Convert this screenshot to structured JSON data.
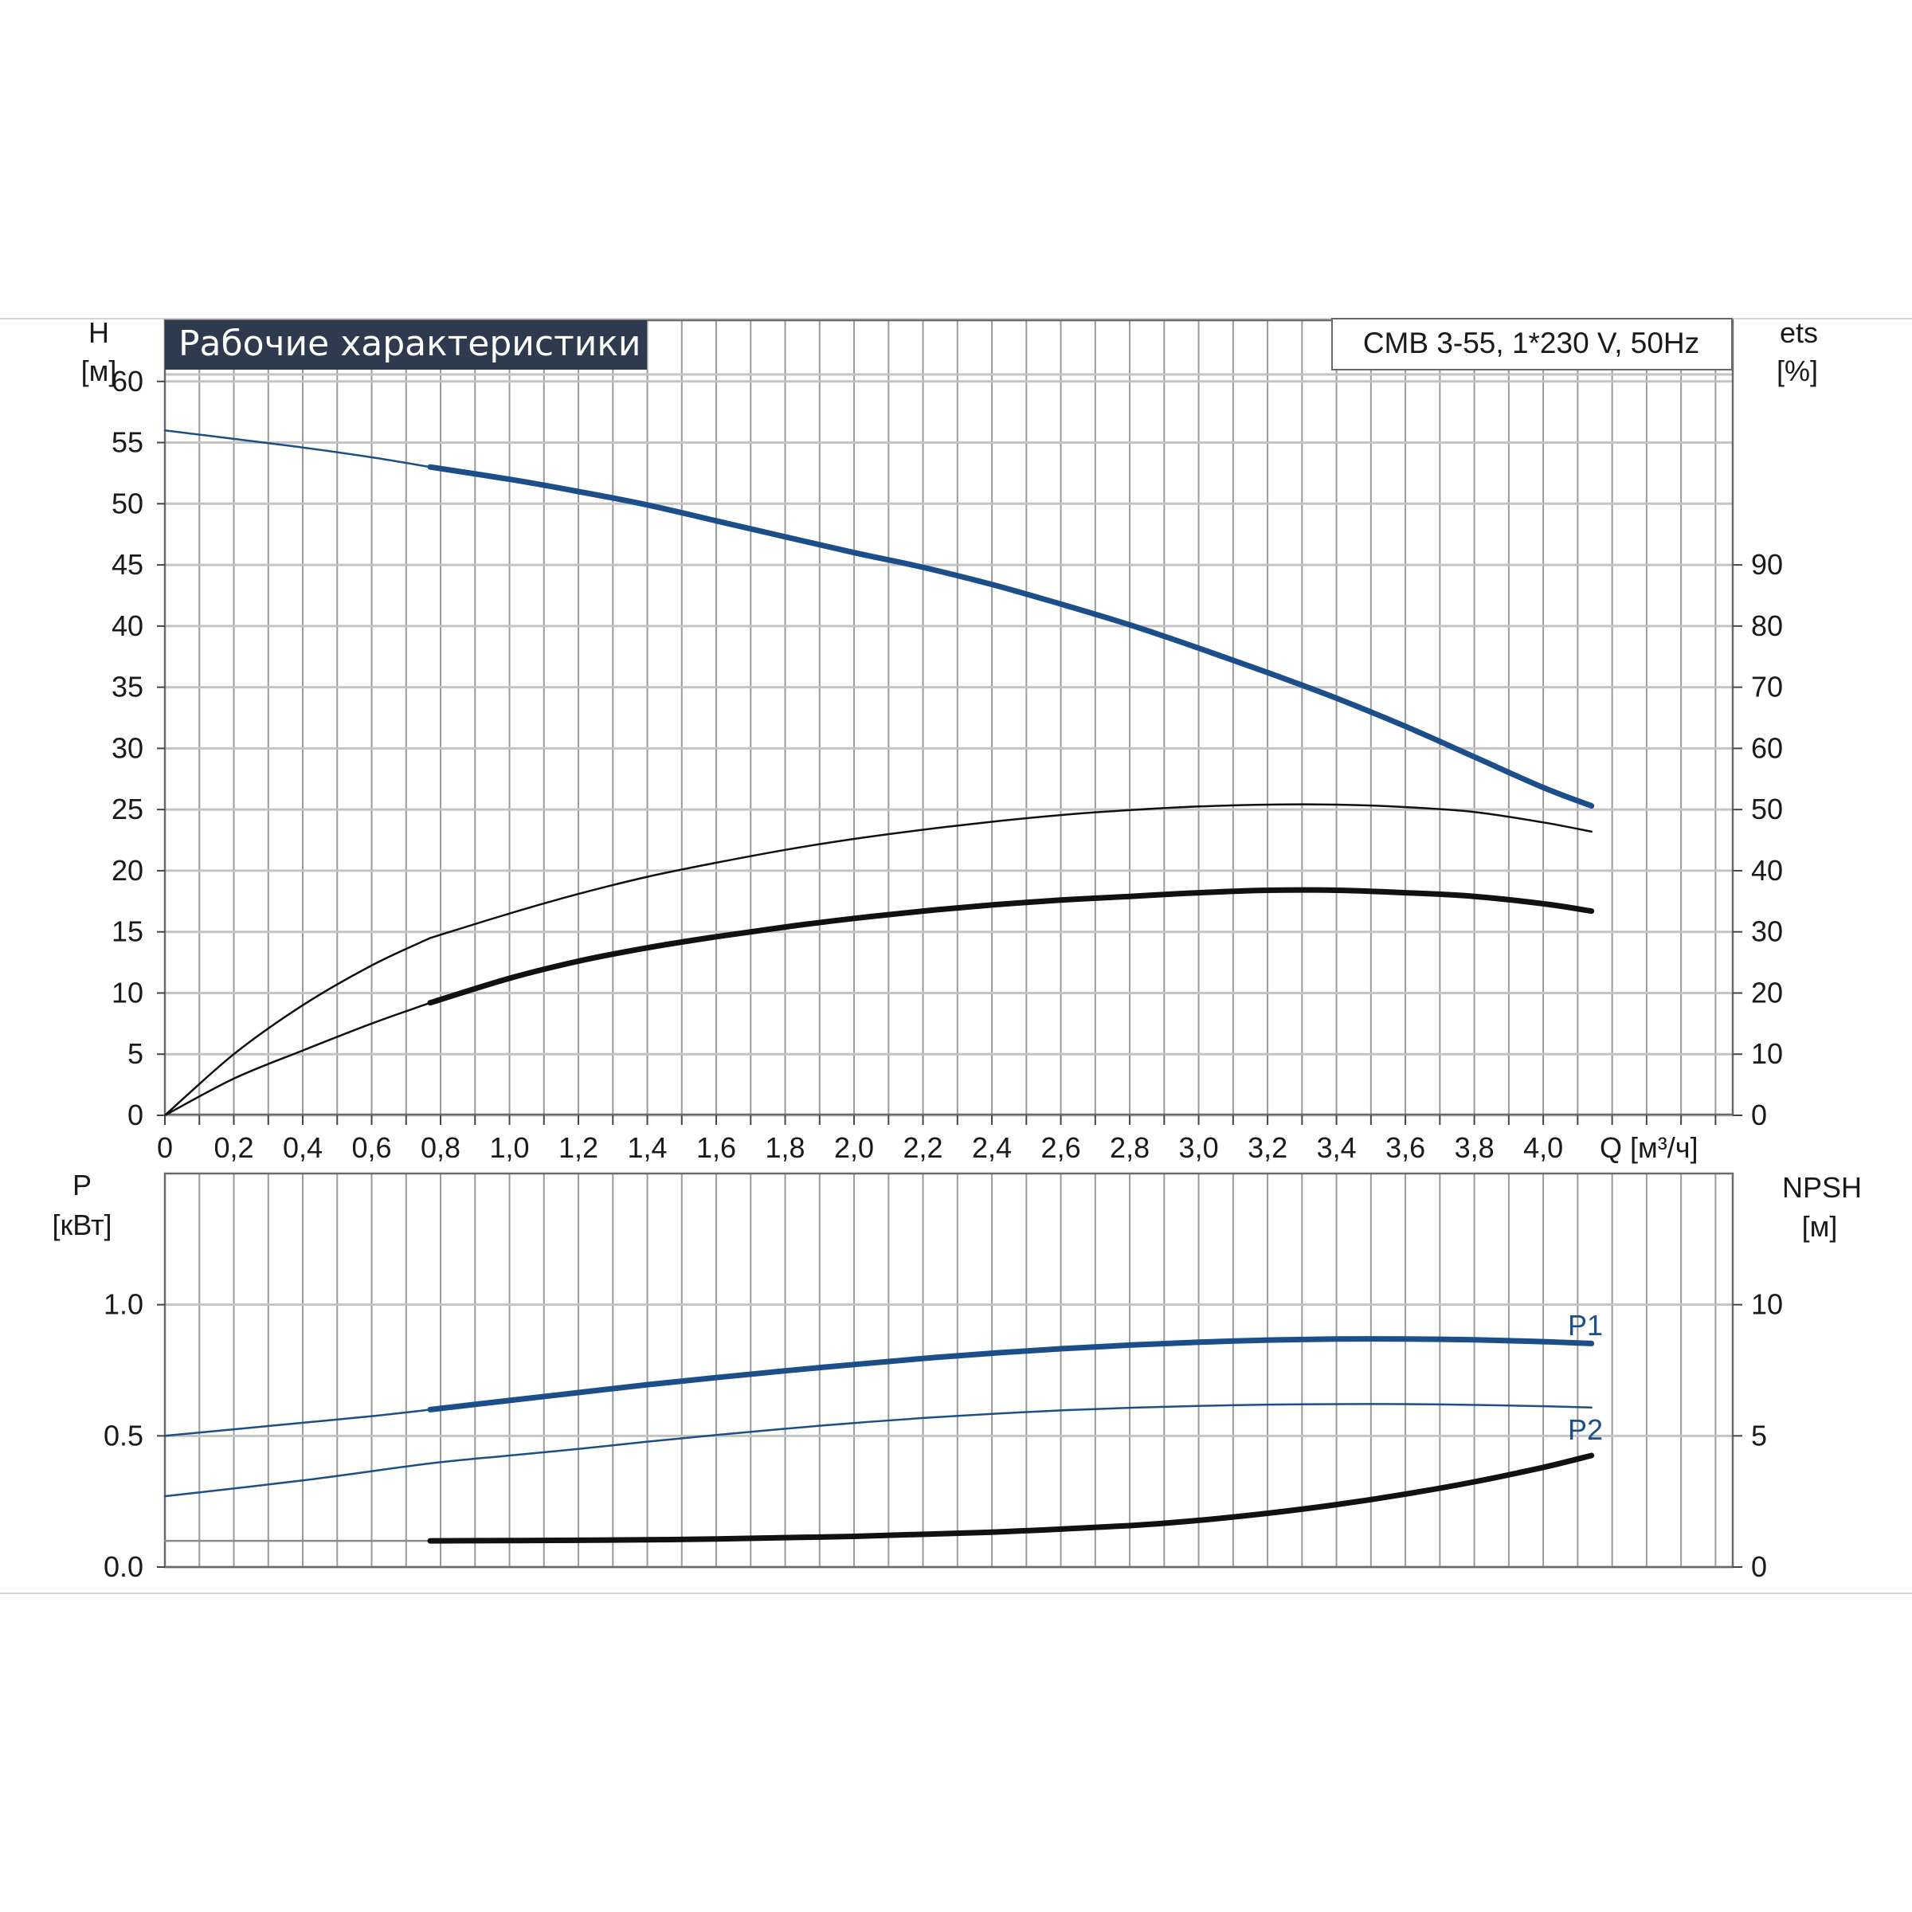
{
  "title": "Рабочие характеристики",
  "model": "CMB 3-55, 1*230 V, 50Hz",
  "colors": {
    "blue": "#1c4f8a",
    "black": "#111111",
    "grid_v": "#9a9a9a",
    "grid_h": "#c4c4c4",
    "title_bg": "#2e3b4e"
  },
  "chart_data": [
    {
      "type": "line",
      "name": "head-efficiency",
      "x_ticks": [
        "0",
        "0,2",
        "0,4",
        "0,6",
        "0,8",
        "1,0",
        "1,2",
        "1,4",
        "1,6",
        "1,8",
        "2,0",
        "2,2",
        "2,4",
        "2,6",
        "2,8",
        "3,0",
        "3,2",
        "3,4",
        "3,6",
        "3,8",
        "4,0"
      ],
      "xlabel": "Q [м³/ч]",
      "xlim": [
        0,
        4.55
      ],
      "ylabel_left": "H",
      "yunit_left": "[м]",
      "ylim_left": [
        0,
        65
      ],
      "y_ticks_left": [
        "0",
        "5",
        "10",
        "15",
        "20",
        "25",
        "30",
        "35",
        "40",
        "45",
        "50",
        "55",
        "60"
      ],
      "ylabel_right": "ets",
      "yunit_right": "[%]",
      "ylim_right": [
        0,
        130
      ],
      "y_ticks_right": [
        "0",
        "10",
        "20",
        "30",
        "40",
        "50",
        "60",
        "70",
        "80",
        "90"
      ],
      "grid": true,
      "series": [
        {
          "axis": "left",
          "color": "blue",
          "x": [
            0,
            0.2,
            0.4,
            0.6,
            0.77
          ],
          "y": [
            56,
            55.3,
            54.6,
            53.8,
            53
          ],
          "weight": "thin"
        },
        {
          "axis": "left",
          "color": "blue",
          "x": [
            0.77,
            1.0,
            1.2,
            1.4,
            1.6,
            1.8,
            2.0,
            2.2,
            2.4,
            2.6,
            2.8,
            3.0,
            3.2,
            3.4,
            3.6,
            3.8,
            4.0,
            4.14
          ],
          "y": [
            53,
            52,
            51,
            49.9,
            48.6,
            47.3,
            46,
            44.8,
            43.4,
            41.8,
            40.1,
            38.2,
            36.2,
            34.1,
            31.8,
            29.3,
            26.8,
            25.3
          ],
          "weight": "thick"
        },
        {
          "axis": "right",
          "color": "black",
          "x": [
            0,
            0.2,
            0.4,
            0.6,
            0.77
          ],
          "y": [
            0,
            10,
            18,
            24.5,
            29
          ],
          "weight": "thin"
        },
        {
          "axis": "right",
          "color": "black",
          "x": [
            0.77,
            1.0,
            1.2,
            1.4,
            1.6,
            1.8,
            2.0,
            2.2,
            2.4,
            2.6,
            2.8,
            3.0,
            3.2,
            3.4,
            3.6,
            3.8,
            4.0,
            4.14
          ],
          "y": [
            29,
            33,
            36.2,
            39,
            41.3,
            43.4,
            45.2,
            46.7,
            48,
            49.1,
            49.9,
            50.5,
            50.8,
            50.8,
            50.4,
            49.6,
            47.9,
            46.4
          ],
          "weight": "thin"
        },
        {
          "axis": "left",
          "color": "black",
          "x": [
            0,
            0.2,
            0.4,
            0.6,
            0.77
          ],
          "y": [
            0,
            3,
            5.3,
            7.5,
            9.2
          ],
          "weight": "thin"
        },
        {
          "axis": "left",
          "color": "black",
          "x": [
            0.77,
            1.0,
            1.2,
            1.4,
            1.6,
            1.8,
            2.0,
            2.2,
            2.4,
            2.6,
            2.8,
            3.0,
            3.2,
            3.4,
            3.6,
            3.8,
            4.0,
            4.14
          ],
          "y": [
            9.2,
            11.2,
            12.6,
            13.7,
            14.6,
            15.4,
            16.1,
            16.7,
            17.2,
            17.6,
            17.9,
            18.2,
            18.4,
            18.4,
            18.2,
            17.9,
            17.3,
            16.7
          ],
          "weight": "thick"
        }
      ]
    },
    {
      "type": "line",
      "name": "power-npsh",
      "xlim": [
        0,
        4.55
      ],
      "ylabel_left": "P",
      "yunit_left": "[кВт]",
      "ylim_left": [
        0,
        1.5
      ],
      "y_ticks_left": [
        "0.0",
        "0.5",
        "1.0"
      ],
      "ylabel_right": "NPSH",
      "yunit_right": "[м]",
      "ylim_right": [
        0,
        15
      ],
      "y_ticks_right": [
        "0",
        "5",
        "10"
      ],
      "grid": true,
      "series": [
        {
          "axis": "left",
          "color": "blue",
          "x": [
            0,
            0.2,
            0.4,
            0.6,
            0.77
          ],
          "y": [
            0.5,
            0.525,
            0.55,
            0.575,
            0.6
          ],
          "weight": "thin"
        },
        {
          "name": "P1",
          "axis": "left",
          "color": "blue",
          "x": [
            0.77,
            1.0,
            1.2,
            1.4,
            1.6,
            1.8,
            2.0,
            2.2,
            2.4,
            2.6,
            2.8,
            3.0,
            3.2,
            3.4,
            3.6,
            3.8,
            4.0,
            4.14
          ],
          "y": [
            0.6,
            0.635,
            0.665,
            0.695,
            0.722,
            0.748,
            0.772,
            0.795,
            0.815,
            0.832,
            0.846,
            0.857,
            0.865,
            0.869,
            0.869,
            0.866,
            0.859,
            0.852
          ],
          "weight": "thick"
        },
        {
          "name": "P2",
          "axis": "left",
          "color": "blue",
          "x": [
            0,
            0.4,
            0.77,
            1.0,
            1.2,
            1.4,
            1.6,
            1.8,
            2.0,
            2.2,
            2.4,
            2.6,
            2.8,
            3.0,
            3.2,
            3.4,
            3.6,
            3.8,
            4.0,
            4.14
          ],
          "y": [
            0.27,
            0.33,
            0.395,
            0.425,
            0.45,
            0.478,
            0.503,
            0.527,
            0.549,
            0.568,
            0.584,
            0.597,
            0.607,
            0.614,
            0.619,
            0.621,
            0.621,
            0.618,
            0.613,
            0.608
          ],
          "weight": "thin"
        },
        {
          "axis": "right",
          "color": "grey",
          "x": [
            0,
            0.77
          ],
          "y": [
            1,
            1
          ],
          "weight": "thin"
        },
        {
          "name": "NPSH",
          "axis": "right",
          "color": "black",
          "x": [
            0.77,
            1.2,
            1.6,
            2.0,
            2.4,
            2.8,
            3.0,
            3.2,
            3.4,
            3.6,
            3.8,
            4.0,
            4.14
          ],
          "y": [
            1,
            1.02,
            1.07,
            1.17,
            1.33,
            1.58,
            1.78,
            2.05,
            2.38,
            2.78,
            3.25,
            3.8,
            4.25
          ],
          "weight": "thick"
        }
      ],
      "labels": [
        "P1",
        "P2"
      ]
    }
  ]
}
